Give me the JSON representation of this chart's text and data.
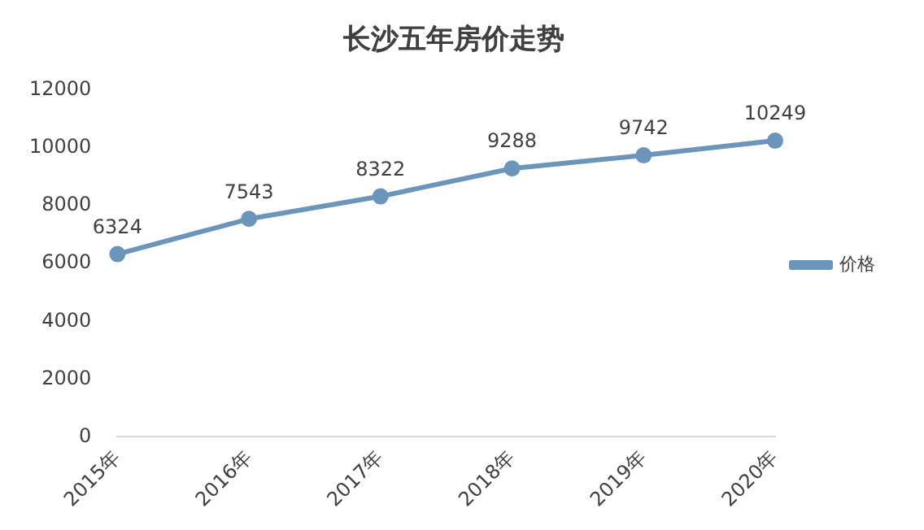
{
  "chart_data": {
    "type": "line",
    "title": "长沙五年房价走势",
    "categories": [
      "2015年",
      "2016年",
      "2017年",
      "2018年",
      "2019年",
      "2020年"
    ],
    "series": [
      {
        "name": "价格",
        "color": "#6b95bb",
        "values": [
          6324,
          7543,
          8322,
          9288,
          9742,
          10249
        ]
      }
    ],
    "ylim": [
      0,
      12000
    ],
    "yticks": [
      0,
      2000,
      4000,
      6000,
      8000,
      10000,
      12000
    ],
    "grid": false,
    "legend": "right",
    "marker": "circle",
    "line_style": "solid",
    "data_labels": true
  }
}
